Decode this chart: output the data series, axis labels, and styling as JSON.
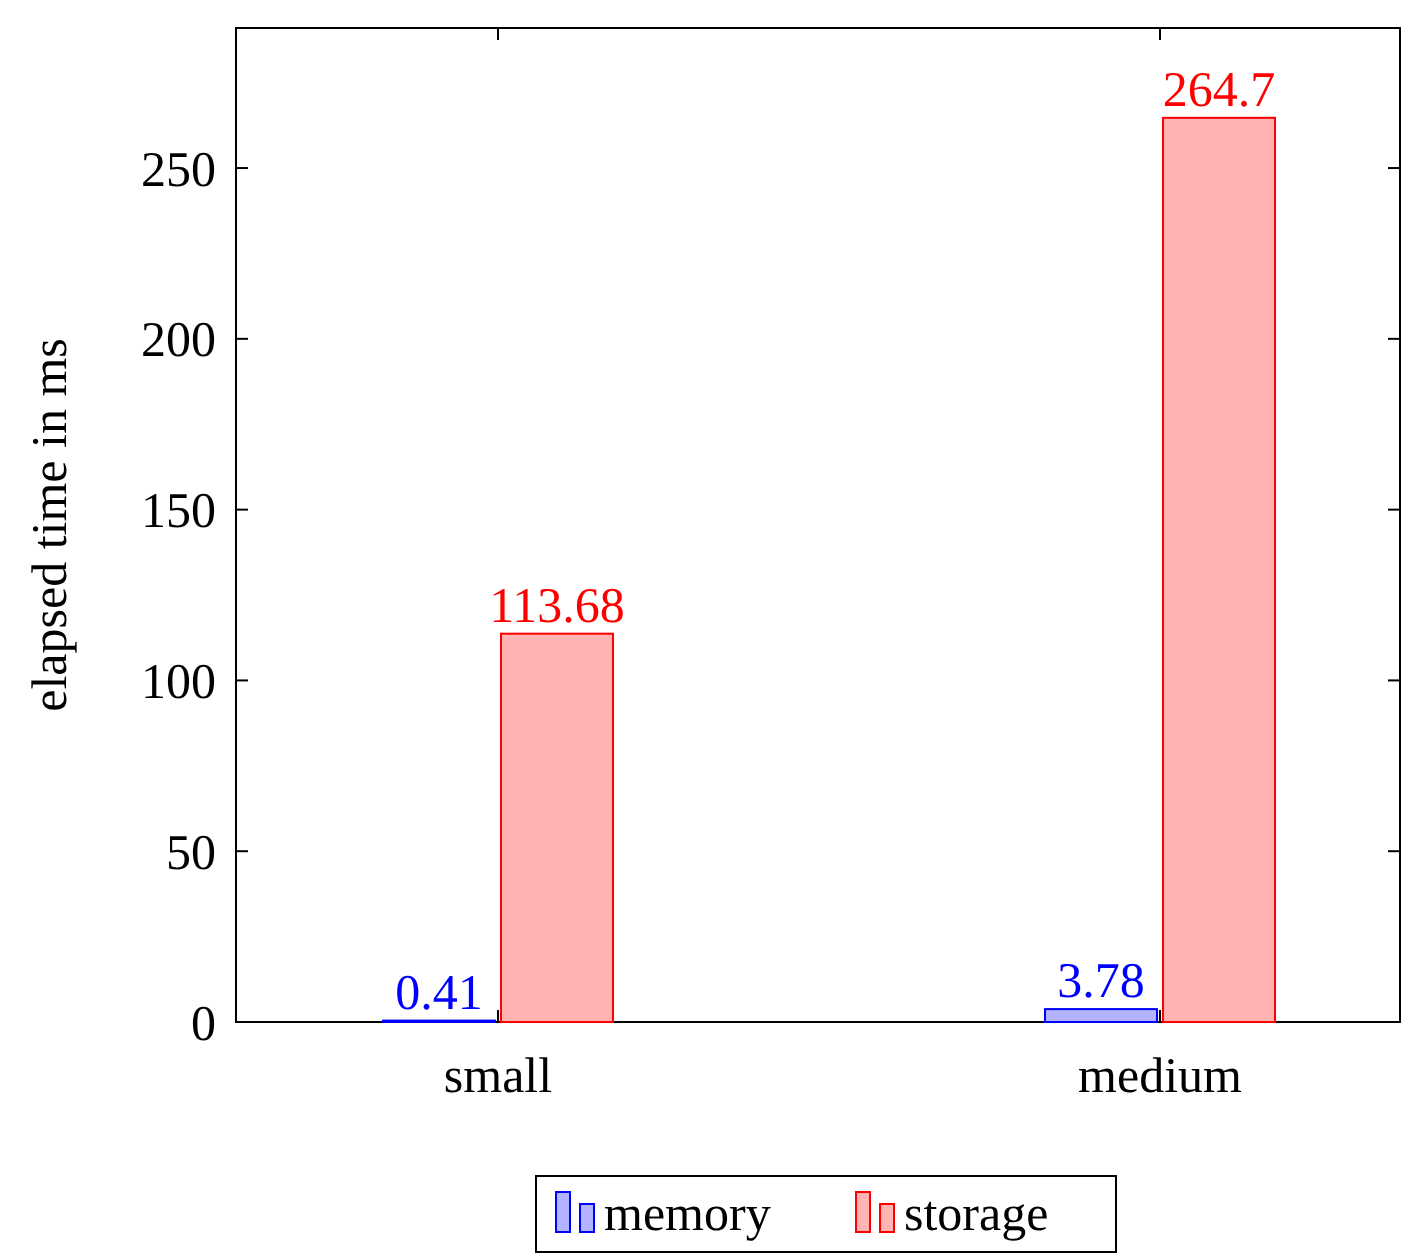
{
  "chart_data": {
    "type": "bar",
    "ylabel": "elapsed time in ms",
    "categories": [
      "small",
      "medium"
    ],
    "series": [
      {
        "name": "memory",
        "color": "#0000ff",
        "values": [
          0.41,
          3.78
        ]
      },
      {
        "name": "storage",
        "color": "#ff0000",
        "values": [
          113.68,
          264.7
        ]
      }
    ],
    "ylim": [
      0,
      291
    ],
    "yticks": [
      0,
      50,
      100,
      150,
      200,
      250
    ],
    "data_labels": true,
    "legend": "bottom",
    "grid": false
  }
}
